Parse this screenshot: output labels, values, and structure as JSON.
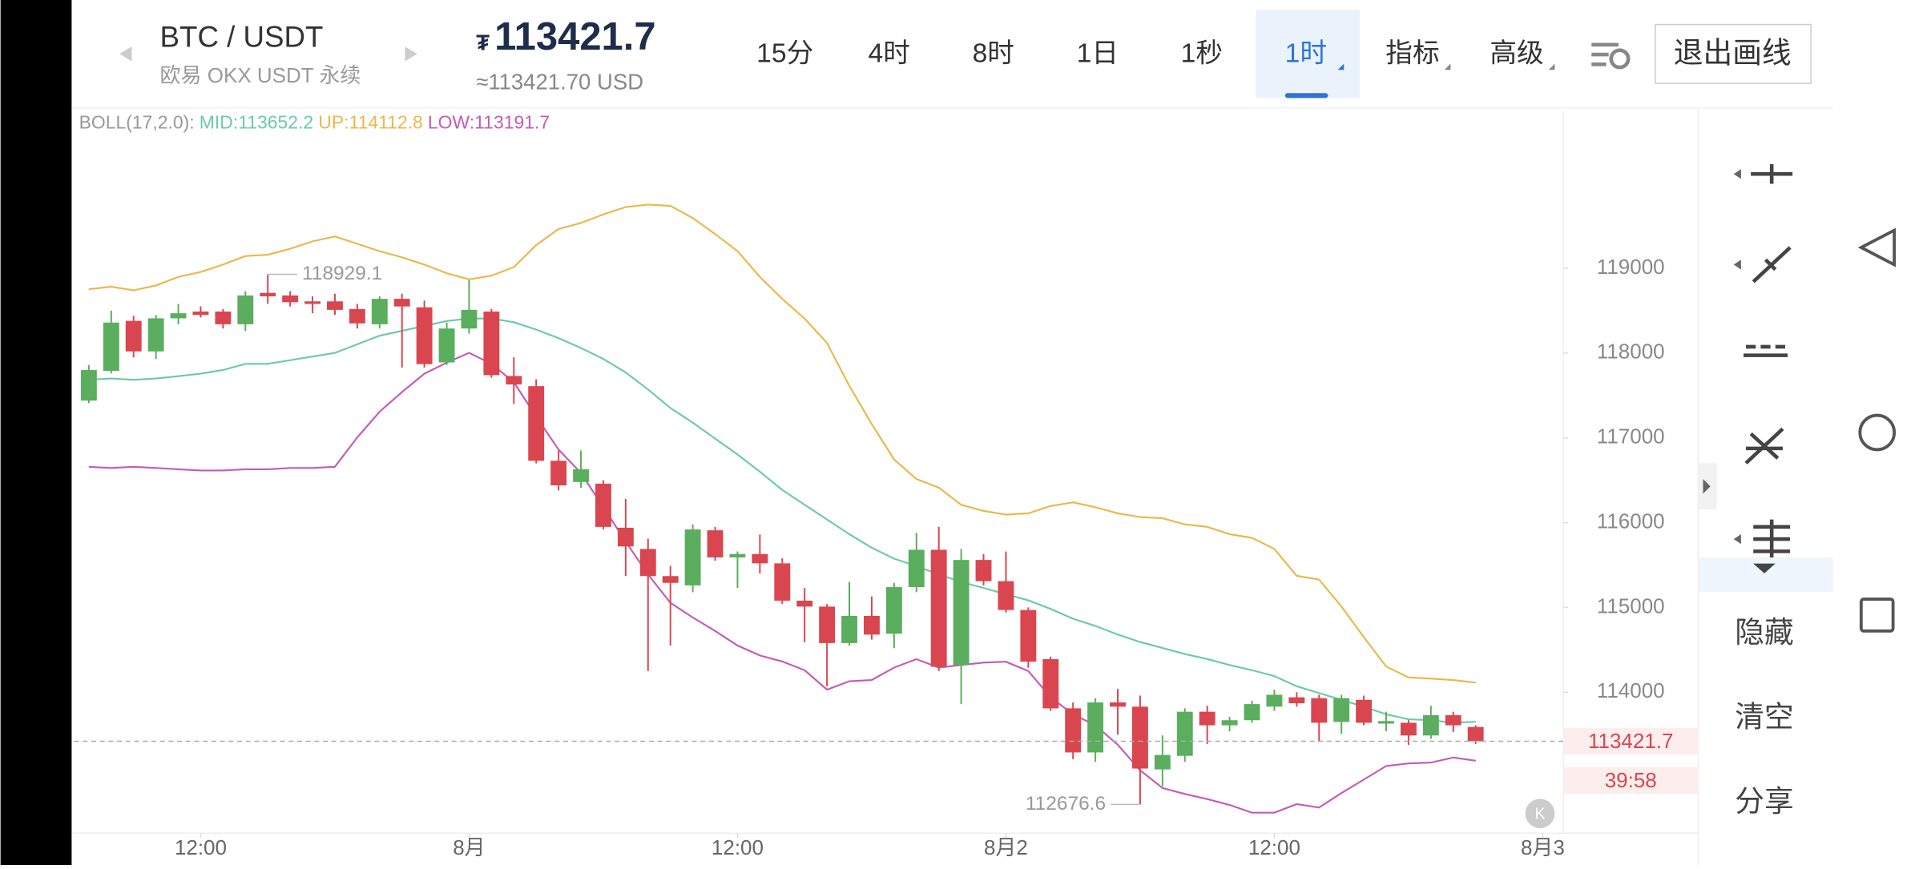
{
  "header": {
    "symbol": "BTC / USDT",
    "exchange": "欧易 OKX USDT 永续",
    "currency_symbol": "₮",
    "last_price": "113421.7",
    "usd_price": "≈113421.70 USD",
    "tabs": [
      "15分",
      "4时",
      "8时",
      "1日",
      "1秒",
      "1时",
      "指标",
      "高级"
    ],
    "exit_button": "退出画线"
  },
  "toolbar": {
    "actions": [
      "隐藏",
      "清空",
      "分享"
    ]
  },
  "logo": "K",
  "chart_data": {
    "type": "candlestick",
    "indicator": "BOLL(17,2.0):",
    "x": [
      0,
      1,
      2,
      3,
      4,
      5,
      6,
      7,
      8,
      9,
      10,
      11,
      12,
      13,
      14,
      15,
      16,
      17,
      18,
      19,
      20,
      21,
      22,
      23,
      24,
      25,
      26,
      27,
      28,
      29,
      30,
      31,
      32,
      33,
      34,
      35,
      36,
      37,
      38,
      39,
      40,
      41,
      42,
      43,
      44,
      45,
      46,
      47,
      48,
      49,
      50,
      51,
      52,
      53,
      54,
      55,
      56,
      57,
      58,
      59,
      60,
      61,
      62
    ],
    "open": [
      117440,
      117790,
      118380,
      118020,
      118410,
      118490,
      118490,
      118340,
      118710,
      118680,
      118610,
      118610,
      118520,
      118340,
      118640,
      118540,
      117890,
      118290,
      118490,
      117730,
      117610,
      116730,
      116480,
      116460,
      115940,
      115690,
      115370,
      115260,
      115910,
      115590,
      115630,
      115520,
      115080,
      115010,
      114580,
      114900,
      114690,
      115240,
      115680,
      114320,
      115560,
      115310,
      114970,
      114390,
      113810,
      113290,
      113880,
      113830,
      113090,
      113250,
      113770,
      113610,
      113670,
      113830,
      113940,
      113930,
      113650,
      113910,
      113630,
      113640,
      113490,
      113730,
      113590
    ],
    "high": [
      117860,
      118500,
      118440,
      118450,
      118580,
      118550,
      118520,
      118730,
      118929.1,
      118730,
      118670,
      118700,
      118580,
      118670,
      118700,
      118620,
      118360,
      118860,
      118520,
      117950,
      117690,
      116850,
      116850,
      116500,
      116280,
      115810,
      115490,
      115980,
      115950,
      115660,
      115860,
      115580,
      115230,
      115040,
      115300,
      115130,
      115290,
      115880,
      115950,
      115690,
      115630,
      115660,
      115000,
      114420,
      113880,
      113930,
      114040,
      113960,
      113490,
      113810,
      113840,
      113710,
      113900,
      114030,
      114000,
      113970,
      113970,
      113960,
      113770,
      113670,
      113840,
      113770,
      113610
    ],
    "low": [
      117410,
      117760,
      117950,
      117930,
      118340,
      118420,
      118290,
      118260,
      118580,
      118550,
      118470,
      118450,
      118290,
      118290,
      117830,
      117830,
      117860,
      118230,
      117710,
      117400,
      116700,
      116380,
      116410,
      115920,
      115370,
      114250,
      114550,
      115180,
      115550,
      115230,
      115400,
      115040,
      114590,
      114070,
      114550,
      114620,
      114520,
      115180,
      114250,
      113860,
      115260,
      114940,
      114290,
      113780,
      113210,
      113180,
      113500,
      112676.6,
      112890,
      113180,
      113390,
      113540,
      113640,
      113780,
      113830,
      113420,
      113510,
      113610,
      113540,
      113380,
      113450,
      113530,
      113390
    ],
    "close": [
      117800,
      118360,
      118020,
      118410,
      118470,
      118450,
      118340,
      118680,
      118670,
      118600,
      118580,
      118510,
      118350,
      118640,
      118550,
      117870,
      118290,
      118510,
      117740,
      117630,
      116730,
      116440,
      116630,
      115950,
      115720,
      115370,
      115290,
      115920,
      115590,
      115630,
      115520,
      115080,
      115010,
      114580,
      114900,
      114680,
      115240,
      115680,
      114300,
      115560,
      115310,
      114970,
      114360,
      113810,
      113290,
      113880,
      113830,
      113100,
      113260,
      113770,
      113610,
      113670,
      113860,
      113970,
      113870,
      113640,
      113930,
      113640,
      113660,
      113490,
      113730,
      113610,
      113421.7
    ],
    "up_color": "#5aae5e",
    "down_color": "#d9464f",
    "series": [
      {
        "name": "MID:",
        "color": "#6ccaa6",
        "values": [
          117685,
          117700,
          117685,
          117700,
          117728,
          117757,
          117801,
          117873,
          117873,
          117916,
          117960,
          118003,
          118104,
          118205,
          118263,
          118321,
          118379,
          118408,
          118408,
          118364,
          118278,
          118176,
          118061,
          117931,
          117772,
          117570,
          117353,
          117179,
          116991,
          116804,
          116601,
          116385,
          116211,
          116038,
          115864,
          115705,
          115575,
          115489,
          115388,
          115301,
          115229,
          115156,
          115084,
          114983,
          114867,
          114781,
          114680,
          114593,
          114521,
          114450,
          114392,
          114320,
          114260,
          114190,
          114070,
          113990,
          113910,
          113830,
          113740,
          113680,
          113670,
          113640,
          113652.2
        ]
      },
      {
        "name": "UP:",
        "color": "#e8b84a",
        "values": [
          118754,
          118783,
          118740,
          118798,
          118899,
          118957,
          119043,
          119145,
          119160,
          119231,
          119318,
          119376,
          119289,
          119202,
          119130,
          119043,
          118942,
          118870,
          118913,
          119014,
          119275,
          119463,
          119535,
          119636,
          119723,
          119751,
          119737,
          119593,
          119405,
          119202,
          118899,
          118639,
          118408,
          118118,
          117613,
          117165,
          116746,
          116515,
          116413,
          116211,
          116139,
          116095,
          116110,
          116197,
          116240,
          116182,
          116110,
          116066,
          116052,
          115980,
          115951,
          115864,
          115821,
          115691,
          115373,
          115330,
          115012,
          114650,
          114304,
          114174,
          114160,
          114145,
          114112.8
        ]
      },
      {
        "name": "LOW:",
        "color": "#c45bb5",
        "values": [
          116659,
          116645,
          116659,
          116645,
          116630,
          116616,
          116616,
          116630,
          116630,
          116645,
          116645,
          116659,
          117006,
          117309,
          117541,
          117757,
          117887,
          118003,
          117873,
          117656,
          117252,
          116861,
          116587,
          116182,
          115778,
          115388,
          115055,
          114882,
          114723,
          114550,
          114434,
          114362,
          114260,
          114030,
          114130,
          114145,
          114290,
          114390,
          114290,
          114320,
          114350,
          114360,
          114250,
          113940,
          113740,
          113610,
          113380,
          113080,
          112870,
          112800,
          112740,
          112670,
          112580,
          112580,
          112680,
          112640,
          112810,
          112970,
          113130,
          113160,
          113170,
          113230,
          113191.7
        ]
      }
    ],
    "ylim": [
      112338,
      120864
    ],
    "yticks": [
      114000,
      115000,
      116000,
      117000,
      118000,
      119000
    ],
    "xlim": [
      -0.66,
      65.92
    ],
    "xticks": [
      {
        "value": 5,
        "label": "12:00"
      },
      {
        "value": 17,
        "label": "8月"
      },
      {
        "value": 29,
        "label": "12:00"
      },
      {
        "value": 41,
        "label": "8月2"
      },
      {
        "value": 53,
        "label": "12:00"
      },
      {
        "value": 65,
        "label": "8月3"
      }
    ],
    "countdown": "39:58",
    "grid": false
  }
}
